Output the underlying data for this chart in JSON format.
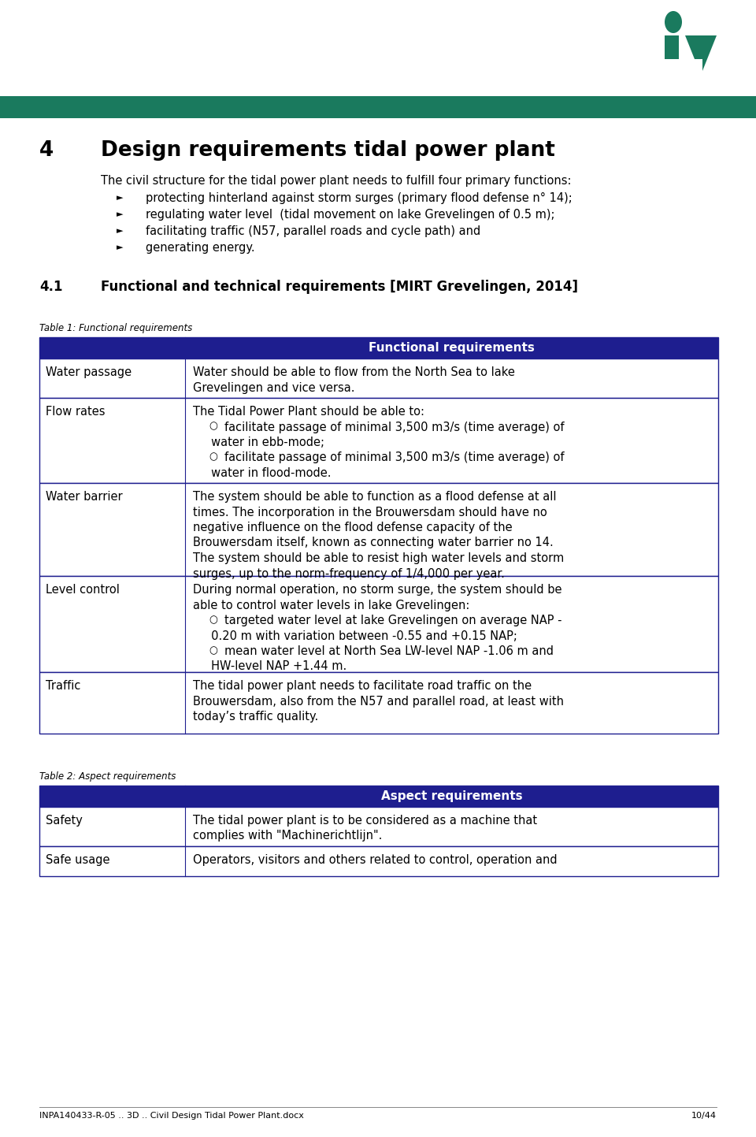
{
  "page_bg": "#ffffff",
  "header_bar_color": "#1a7a5e",
  "table_header_bg": "#1e1e8f",
  "table_header_text": "#ffffff",
  "table_border_color": "#1e1e8f",
  "section_num": "4",
  "section_title": "Design requirements tidal power plant",
  "intro_text": "The civil structure for the tidal power plant needs to fulfill four primary functions:",
  "bullets": [
    "protecting hinterland against storm surges (primary flood defense n° 14);",
    "regulating water level  (tidal movement on lake Grevelingen of 0.5 m);",
    "facilitating traffic (N57, parallel roads and cycle path) and",
    "generating energy."
  ],
  "subsection_num": "4.1",
  "subsection_title": "Functional and technical requirements [MIRT Grevelingen, 2014]",
  "table1_caption": "Table 1: Functional requirements",
  "table1_header": "Functional requirements",
  "table1_rows": [
    {
      "label": "Water passage",
      "text": "Water should be able to flow from the North Sea to lake\nGrevelingen and vice versa."
    },
    {
      "label": "Flow rates",
      "text": "The Tidal Power Plant should be able to:\n○  facilitate passage of minimal 3,500 m3/s (time average) of\n     water in ebb-mode;\n○  facilitate passage of minimal 3,500 m3/s (time average) of\n     water in flood-mode."
    },
    {
      "label": "Water barrier",
      "text": "The system should be able to function as a flood defense at all\ntimes. The incorporation in the Brouwersdam should have no\nnegative influence on the flood defense capacity of the\nBrouwersdam itself, known as connecting water barrier no 14.\nThe system should be able to resist high water levels and storm\nsurges, up to the norm-frequency of 1/4,000 per year."
    },
    {
      "label": "Level control",
      "text": "During normal operation, no storm surge, the system should be\nable to control water levels in lake Grevelingen:\n○  targeted water level at lake Grevelingen on average NAP -\n     0.20 m with variation between -0.55 and +0.15 NAP;\n○  mean water level at North Sea LW-level NAP -1.06 m and\n     HW-level NAP +1.44 m."
    },
    {
      "label": "Traffic",
      "text": "The tidal power plant needs to facilitate road traffic on the\nBrouwersdam, also from the N57 and parallel road, at least with\ntoday’s traffic quality."
    }
  ],
  "table2_caption": "Table 2: Aspect requirements",
  "table2_header": "Aspect requirements",
  "table2_rows": [
    {
      "label": "Safety",
      "text": "The tidal power plant is to be considered as a machine that\ncomplies with \"Machinerichtlijn\"."
    },
    {
      "label": "Safe usage",
      "text": "Operators, visitors and others related to control, operation and"
    }
  ],
  "footer_left": "INPA140433-R-05 .. 3D .. Civil Design Tidal Power Plant.docx",
  "footer_right": "10/44",
  "text_color": "#000000",
  "logo_color": "#1a7a5e"
}
